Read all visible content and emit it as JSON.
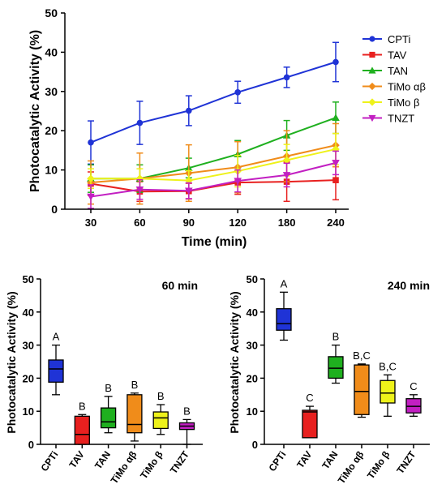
{
  "chart_data": [
    {
      "type": "line",
      "title": "",
      "xlabel": "Time (min)",
      "ylabel": "Photocatalytic Activity (%)",
      "x": [
        "30",
        "60",
        "90",
        "120",
        "180",
        "240"
      ],
      "ylim": [
        0,
        50
      ],
      "yticks": [
        "0",
        "10",
        "20",
        "30",
        "40",
        "50"
      ],
      "legend_position": "right",
      "series": [
        {
          "name": "CPTi",
          "color": "#1f33d6",
          "marker": "circle",
          "values": [
            17.0,
            22.0,
            25.1,
            29.8,
            33.6,
            37.5
          ],
          "errors": [
            5.5,
            5.5,
            3.8,
            2.8,
            2.6,
            5.0
          ]
        },
        {
          "name": "TAV",
          "color": "#e8201f",
          "marker": "square",
          "values": [
            6.5,
            4.5,
            4.6,
            6.8,
            7.0,
            7.4
          ],
          "errors": [
            3.0,
            2.5,
            2.0,
            3.0,
            5.0,
            5.0
          ]
        },
        {
          "name": "TAN",
          "color": "#1fb01f",
          "marker": "triangle",
          "values": [
            7.8,
            7.8,
            10.5,
            14.0,
            18.8,
            23.3
          ],
          "errors": [
            3.5,
            3.5,
            2.5,
            3.5,
            3.8,
            4.0
          ]
        },
        {
          "name": "TiMo αβ",
          "color": "#f08c1a",
          "marker": "diamond",
          "values": [
            6.8,
            7.8,
            9.2,
            10.7,
            13.5,
            16.3
          ],
          "errors": [
            5.5,
            6.5,
            7.2,
            6.5,
            6.5,
            5.5
          ]
        },
        {
          "name": "TiMo β",
          "color": "#eef21a",
          "marker": "diamond",
          "values": [
            7.8,
            7.8,
            7.3,
            9.7,
            12.5,
            15.3
          ],
          "errors": [
            2.5,
            2.5,
            2.5,
            4.0,
            4.0,
            4.0
          ]
        },
        {
          "name": "TNZT",
          "color": "#c21fc2",
          "marker": "triangle-down",
          "values": [
            3.2,
            5.0,
            4.7,
            7.2,
            8.7,
            11.8
          ],
          "errors": [
            3.0,
            2.5,
            2.0,
            2.8,
            3.0,
            3.0
          ]
        }
      ]
    },
    {
      "type": "box",
      "title": "60 min",
      "xlabel": "",
      "ylabel": "Photocatalytic Activity (%)",
      "ylim": [
        0,
        50
      ],
      "yticks": [
        "0",
        "10",
        "20",
        "30",
        "40",
        "50"
      ],
      "categories": [
        "CPTi",
        "TAV",
        "TAN",
        "TiMo αβ",
        "TiMo β",
        "TNZT"
      ],
      "colors": [
        "#1f33d6",
        "#e8201f",
        "#1fb01f",
        "#f08c1a",
        "#eef21a",
        "#c21fc2"
      ],
      "group_letters": [
        "A",
        "B",
        "B",
        "B",
        "B",
        "B"
      ],
      "boxes": [
        {
          "min": 15.0,
          "q1": 18.8,
          "median": 22.8,
          "q3": 25.5,
          "max": 30.0
        },
        {
          "min": 0.0,
          "q1": 0.0,
          "median": 3.0,
          "q3": 8.5,
          "max": 9.0
        },
        {
          "min": 3.5,
          "q1": 5.0,
          "median": 6.8,
          "q3": 11.0,
          "max": 14.5
        },
        {
          "min": 1.0,
          "q1": 3.5,
          "median": 6.0,
          "q3": 15.0,
          "max": 15.5
        },
        {
          "min": 3.0,
          "q1": 4.8,
          "median": 8.0,
          "q3": 9.8,
          "max": 12.0
        },
        {
          "min": 0.0,
          "q1": 4.5,
          "median": 5.5,
          "q3": 6.5,
          "max": 7.5
        }
      ]
    },
    {
      "type": "box",
      "title": "240 min",
      "xlabel": "",
      "ylabel": "Photocatalytic Activity (%)",
      "ylim": [
        0,
        50
      ],
      "yticks": [
        "0",
        "10",
        "20",
        "30",
        "40",
        "50"
      ],
      "categories": [
        "CPTi",
        "TAV",
        "TAN",
        "TiMo αβ",
        "TiMo β",
        "TNZT"
      ],
      "colors": [
        "#1f33d6",
        "#e8201f",
        "#1fb01f",
        "#f08c1a",
        "#eef21a",
        "#c21fc2"
      ],
      "group_letters": [
        "A",
        "C",
        "B",
        "B,C",
        "B,C",
        "C"
      ],
      "boxes": [
        {
          "min": 31.5,
          "q1": 34.5,
          "median": 36.5,
          "q3": 41.0,
          "max": 46.0
        },
        {
          "min": 2.0,
          "q1": 2.0,
          "median": 9.8,
          "q3": 10.3,
          "max": 11.5
        },
        {
          "min": 18.5,
          "q1": 20.0,
          "median": 23.0,
          "q3": 26.5,
          "max": 30.0
        },
        {
          "min": 8.2,
          "q1": 9.0,
          "median": 16.0,
          "q3": 24.0,
          "max": 24.3
        },
        {
          "min": 8.5,
          "q1": 12.5,
          "median": 15.5,
          "q3": 19.3,
          "max": 21.0
        },
        {
          "min": 8.5,
          "q1": 9.5,
          "median": 11.5,
          "q3": 13.8,
          "max": 15.0
        }
      ]
    }
  ]
}
